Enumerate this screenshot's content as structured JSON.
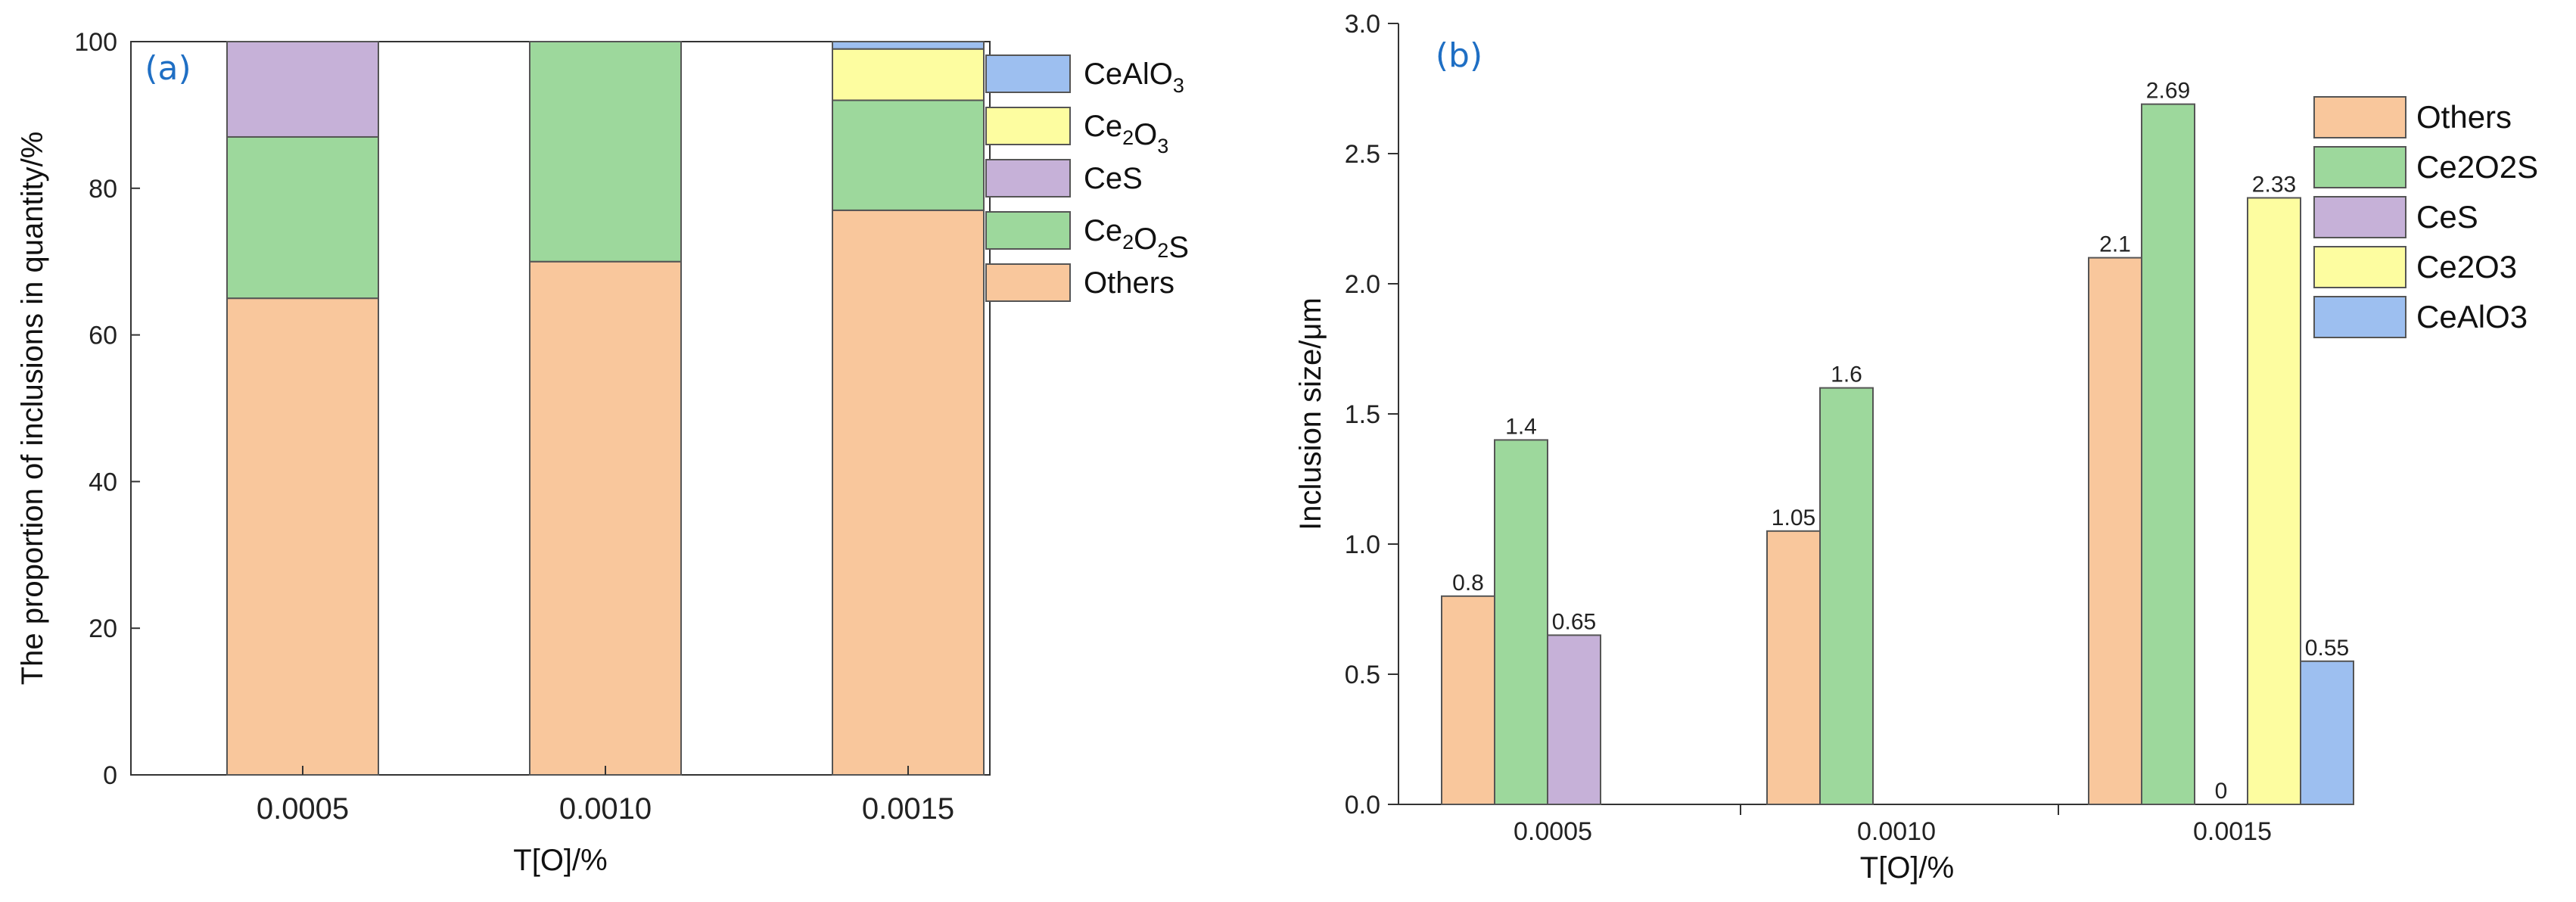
{
  "chart_data": [
    {
      "panel": "(a)",
      "type": "bar",
      "stacked": true,
      "xlabel": "T[O]/%",
      "ylabel": "The proportion of inclusions in quantity/%",
      "ylim": [
        0,
        100
      ],
      "yticks": [
        "0",
        "20",
        "40",
        "60",
        "80",
        "100"
      ],
      "categories": [
        "0.0005",
        "0.0010",
        "0.0015"
      ],
      "series": [
        {
          "name": "Others",
          "color": "#f9c79c",
          "values": [
            65,
            70,
            77
          ]
        },
        {
          "name": "Ce2O2S",
          "color": "#9dd89c",
          "values": [
            22,
            30,
            15
          ]
        },
        {
          "name": "CeS",
          "color": "#c6b1d8",
          "values": [
            13,
            0,
            0
          ]
        },
        {
          "name": "Ce2O3",
          "color": "#fdfda0",
          "values": [
            0,
            0,
            7
          ]
        },
        {
          "name": "CeAlO3",
          "color": "#9dbff0",
          "values": [
            0,
            0,
            1
          ]
        }
      ],
      "legend": [
        {
          "label": "CeAlO",
          "sub": "3",
          "color": "#9dbff0"
        },
        {
          "label": "Ce",
          "sub": "2",
          "label2": "O",
          "sub2": "3",
          "color": "#fdfda0"
        },
        {
          "label": "CeS",
          "color": "#c6b1d8"
        },
        {
          "label": "Ce",
          "sub": "2",
          "label2": "O",
          "sub2": "2",
          "label3": "S",
          "color": "#9dd89c"
        },
        {
          "label": "Others",
          "color": "#f9c79c"
        }
      ]
    },
    {
      "panel": "(b)",
      "type": "bar",
      "stacked": false,
      "xlabel": "T[O]/%",
      "ylabel": "Inclusion size/μm",
      "ylim": [
        0,
        3.0
      ],
      "yticks": [
        "0.0",
        "0.5",
        "1.0",
        "1.5",
        "2.0",
        "2.5",
        "3.0"
      ],
      "categories": [
        "0.0005",
        "0.0010",
        "0.0015"
      ],
      "bars": [
        {
          "category": "0.0005",
          "series": "Others",
          "value": 0.8,
          "label": "0.8"
        },
        {
          "category": "0.0005",
          "series": "Ce2O2S",
          "value": 1.4,
          "label": "1.4"
        },
        {
          "category": "0.0005",
          "series": "CeS",
          "value": 0.65,
          "label": "0.65"
        },
        {
          "category": "0.0010",
          "series": "Others",
          "value": 1.05,
          "label": "1.05"
        },
        {
          "category": "0.0010",
          "series": "Ce2O2S",
          "value": 1.6,
          "label": "1.6"
        },
        {
          "category": "0.0015",
          "series": "Others",
          "value": 2.1,
          "label": "2.1"
        },
        {
          "category": "0.0015",
          "series": "Ce2O2S",
          "value": 2.69,
          "label": "2.69"
        },
        {
          "category": "0.0015",
          "series": "CeS",
          "value": 0,
          "label": "0"
        },
        {
          "category": "0.0015",
          "series": "Ce2O3",
          "value": 2.33,
          "label": "2.33"
        },
        {
          "category": "0.0015",
          "series": "CeAlO3",
          "value": 0.55,
          "label": "0.55"
        }
      ],
      "series_colors": {
        "Others": "#f9c79c",
        "Ce2O2S": "#9dd89c",
        "CeS": "#c6b1d8",
        "Ce2O3": "#fdfda0",
        "CeAlO3": "#9dbff0"
      },
      "legend": [
        {
          "label": "Others",
          "color": "#f9c79c"
        },
        {
          "label": "Ce2O2S",
          "color": "#9dd89c"
        },
        {
          "label": "CeS",
          "color": "#c6b1d8"
        },
        {
          "label": "Ce2O3",
          "color": "#fdfda0"
        },
        {
          "label": "CeAlO3",
          "color": "#9dbff0"
        }
      ]
    }
  ]
}
